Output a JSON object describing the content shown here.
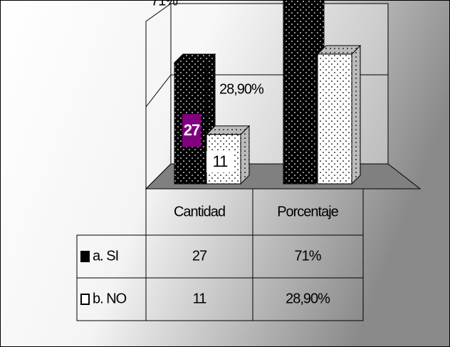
{
  "chart_data": {
    "type": "bar3d",
    "categories": [
      "Cantidad",
      "Porcentaje"
    ],
    "series": [
      {
        "name": "a. SI",
        "color": "#000000",
        "values": [
          27,
          71
        ],
        "value_labels": [
          "27",
          "71%"
        ]
      },
      {
        "name": "b. NO",
        "color": "#ffffff",
        "values": [
          11,
          28.9
        ],
        "value_labels": [
          "11",
          "28,90%"
        ]
      }
    ]
  }
}
